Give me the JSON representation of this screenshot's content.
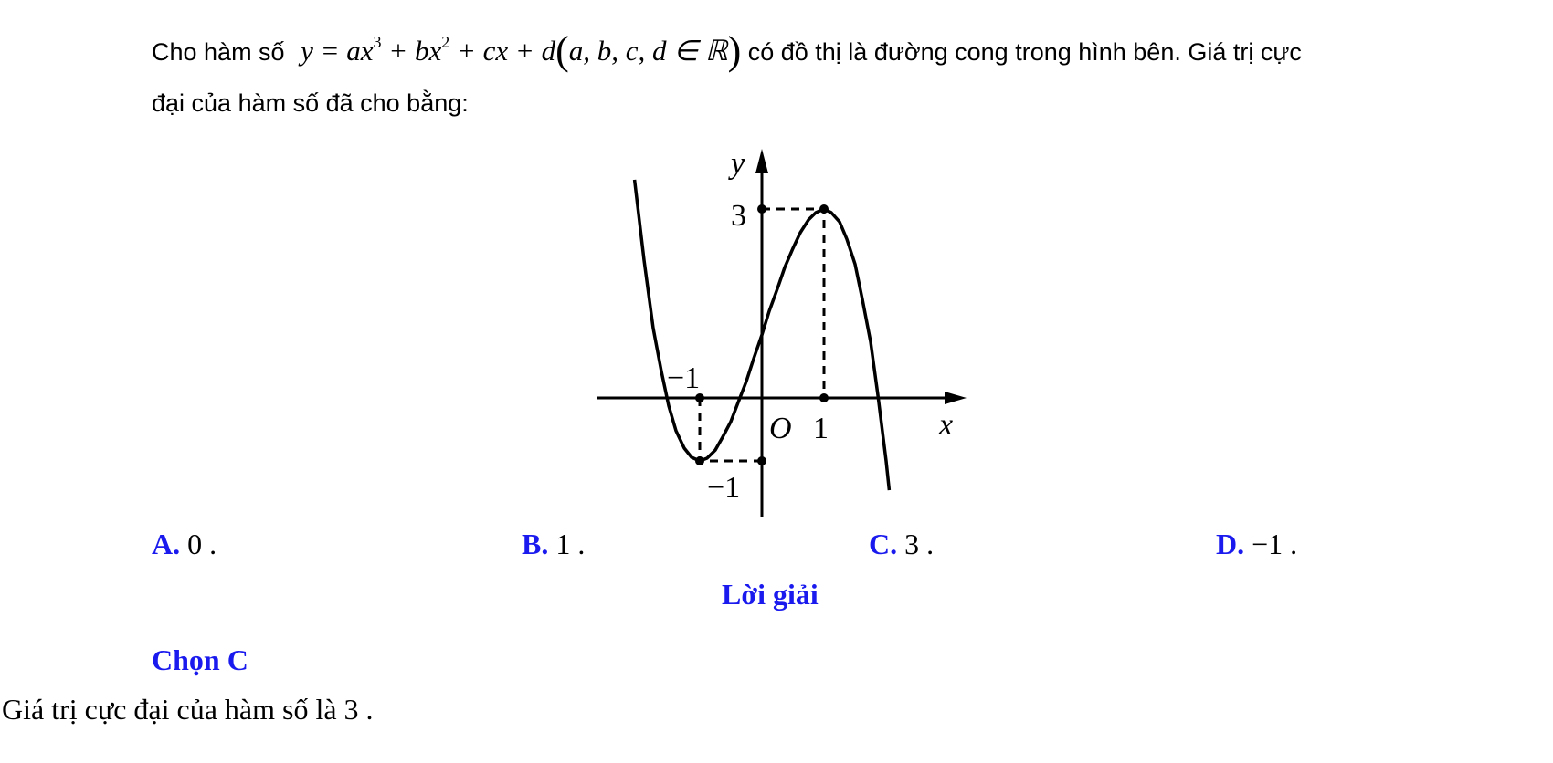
{
  "question": {
    "text_before": "Cho hàm số",
    "formula": [
      "y = ax",
      "3",
      " + bx",
      "2",
      " + cx + d",
      "(",
      "a, b, c, d ∈ ℝ",
      ")"
    ],
    "text_after_line1": "có đồ thị là đường cong trong hình bên. Giá trị cực",
    "text_line2": "đại của hàm số đã cho bằng:"
  },
  "graph": {
    "y_axis_label": "y",
    "x_axis_label": "x",
    "origin_label": "O",
    "y_max_label": "3",
    "x_max_label": "1",
    "x_min_label": "−1",
    "y_min_label": "−1"
  },
  "options": [
    {
      "label": "A.",
      "value": "0 ."
    },
    {
      "label": "B.",
      "value": "1 ."
    },
    {
      "label": "C.",
      "value": "3 ."
    },
    {
      "label": "D.",
      "value": "−1 ."
    }
  ],
  "solution": {
    "heading": "Lời giải",
    "choice": "Chọn C",
    "explanation": "Giá trị cực đại của hàm số là 3 ."
  }
}
